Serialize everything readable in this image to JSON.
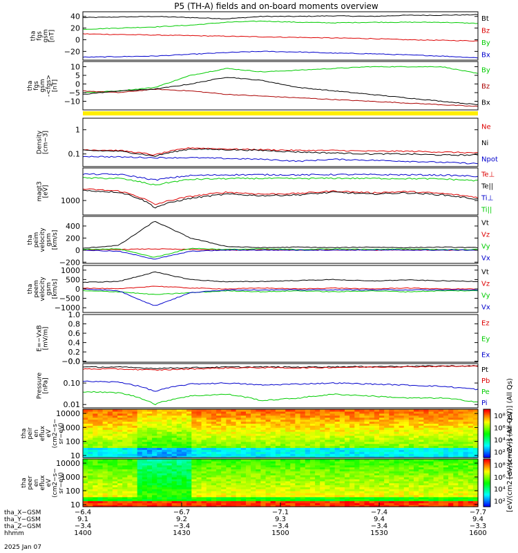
{
  "title": "P5 (TH-A) fields and on-board moments overview",
  "chart_data": [
    {
      "type": "line",
      "panel_label": [
        "tha",
        "fgs",
        "gsm",
        "[nT]"
      ],
      "yticks": [
        "40",
        "20",
        "0",
        "−20"
      ],
      "ylim": [
        -35,
        48
      ],
      "series": [
        {
          "name": "Bt",
          "color": "#000000",
          "values": [
            38,
            39,
            40,
            38,
            36,
            40,
            40,
            41,
            40,
            42,
            42,
            43
          ]
        },
        {
          "name": "Bz",
          "color": "#dd0000",
          "values": [
            10,
            9,
            8,
            7,
            6,
            5,
            4,
            3,
            2,
            0,
            -1,
            -2
          ]
        },
        {
          "name": "By",
          "color": "#00cc00",
          "values": [
            18,
            20,
            22,
            25,
            30,
            32,
            30,
            29,
            30,
            30,
            30,
            28
          ]
        },
        {
          "name": "Bx",
          "color": "#0000cc",
          "values": [
            -30,
            -29,
            -28,
            -25,
            -22,
            -20,
            -21,
            -23,
            -24,
            -26,
            -28,
            -31
          ]
        }
      ]
    },
    {
      "type": "line",
      "panel_label": [
        "tha",
        "fgs",
        "gsm",
        "-<fgs>",
        "[nT]"
      ],
      "yticks": [
        "10",
        "5",
        "0",
        "−5",
        "−10"
      ],
      "ylim": [
        -15,
        13
      ],
      "series": [
        {
          "name": "By",
          "color": "#00cc00",
          "values": [
            -5,
            -4,
            -2,
            5,
            9,
            7,
            8,
            9,
            10,
            10,
            10,
            6
          ]
        },
        {
          "name": "Bz",
          "color": "#aa0000",
          "values": [
            -4,
            -5,
            -3,
            -4,
            -6,
            -7,
            -8,
            -9,
            -10,
            -11,
            -12,
            -13
          ]
        },
        {
          "name": "Bx",
          "color": "#000000",
          "values": [
            -6,
            -4,
            -3,
            0,
            4,
            2,
            -2,
            -4,
            -6,
            -8,
            -10,
            -12
          ]
        }
      ]
    },
    {
      "type": "line",
      "panel_label": [
        "Density",
        "[cm−3]"
      ],
      "yscale": "log",
      "yticks": [
        "1",
        "0.1"
      ],
      "ylim": [
        0.03,
        3
      ],
      "series": [
        {
          "name": "Ne",
          "color": "#dd0000",
          "values": [
            0.15,
            0.14,
            0.09,
            0.18,
            0.16,
            0.15,
            0.14,
            0.14,
            0.13,
            0.13,
            0.12,
            0.11
          ]
        },
        {
          "name": "Ni",
          "color": "#000000",
          "values": [
            0.14,
            0.13,
            0.08,
            0.16,
            0.15,
            0.14,
            0.12,
            0.11,
            0.1,
            0.1,
            0.09,
            0.09
          ]
        },
        {
          "name": "Npot",
          "color": "#0000cc",
          "values": [
            0.08,
            0.075,
            0.07,
            0.07,
            0.065,
            0.06,
            0.05,
            0.06,
            0.055,
            0.05,
            0.045,
            0.04
          ]
        }
      ]
    },
    {
      "type": "line",
      "panel_label": [
        "magt3",
        "[eV]"
      ],
      "yscale": "log",
      "yticks": [
        "1000"
      ],
      "ylim": [
        300,
        15000
      ],
      "series": [
        {
          "name": "Te⊥",
          "color": "#dd0000",
          "values": [
            2600,
            2200,
            700,
            1400,
            2000,
            1700,
            1800,
            2200,
            1900,
            2100,
            1800,
            1300
          ]
        },
        {
          "name": "Te||",
          "color": "#000000",
          "values": [
            2300,
            2000,
            550,
            1200,
            1700,
            1500,
            1600,
            2000,
            1700,
            1900,
            1600,
            1100
          ]
        },
        {
          "name": "Ti⊥",
          "color": "#0000cc",
          "values": [
            9000,
            8800,
            5500,
            8000,
            8500,
            8600,
            8400,
            8700,
            8600,
            8500,
            8300,
            7500
          ]
        },
        {
          "name": "Ti||",
          "color": "#00cc00",
          "values": [
            6500,
            6300,
            3600,
            5800,
            6200,
            6300,
            6200,
            6400,
            6300,
            6200,
            6000,
            5200
          ]
        }
      ]
    },
    {
      "type": "line",
      "panel_label": [
        "tha",
        "peim",
        "velocity",
        "gsm",
        "[km/s]"
      ],
      "yticks": [
        "400",
        "200",
        "0",
        "−200"
      ],
      "ylim": [
        -220,
        560
      ],
      "series": [
        {
          "name": "Vt",
          "color": "#000000",
          "values": [
            30,
            80,
            480,
            200,
            60,
            40,
            50,
            40,
            50,
            40,
            50,
            40
          ]
        },
        {
          "name": "Vz",
          "color": "#dd0000",
          "values": [
            0,
            10,
            20,
            10,
            0,
            5,
            0,
            5,
            0,
            5,
            0,
            0
          ]
        },
        {
          "name": "Vy",
          "color": "#00cc00",
          "values": [
            10,
            20,
            -120,
            30,
            10,
            20,
            10,
            20,
            10,
            20,
            10,
            10
          ]
        },
        {
          "name": "Vx",
          "color": "#0000cc",
          "values": [
            0,
            -20,
            -150,
            -20,
            0,
            0,
            0,
            0,
            0,
            0,
            0,
            0
          ]
        }
      ]
    },
    {
      "type": "line",
      "panel_label": [
        "tha",
        "peem",
        "velocity",
        "gsm",
        "[km/s]"
      ],
      "yticks": [
        "1000",
        "500",
        "0",
        "−500",
        "−1000"
      ],
      "ylim": [
        -1250,
        1250
      ],
      "series": [
        {
          "name": "Vt",
          "color": "#000000",
          "values": [
            350,
            400,
            900,
            500,
            380,
            400,
            450,
            500,
            420,
            480,
            430,
            400
          ]
        },
        {
          "name": "Vz",
          "color": "#dd0000",
          "values": [
            50,
            0,
            150,
            50,
            0,
            50,
            0,
            50,
            0,
            50,
            0,
            0
          ]
        },
        {
          "name": "Vy",
          "color": "#00cc00",
          "values": [
            -100,
            -150,
            -300,
            -200,
            -100,
            -150,
            -100,
            -150,
            -100,
            -150,
            -100,
            -100
          ]
        },
        {
          "name": "Vx",
          "color": "#0000cc",
          "values": [
            0,
            -100,
            -900,
            -200,
            -50,
            -50,
            -50,
            -50,
            -50,
            -50,
            -50,
            -50
          ]
        }
      ]
    },
    {
      "type": "line",
      "panel_label": [
        "E=−VxB",
        "[mV/m]"
      ],
      "yticks": [
        "1.0",
        "0.8",
        "0.6",
        "0.4",
        "0.2",
        "0.0",
        "−0.0"
      ],
      "ylim": [
        -0.02,
        1.0
      ],
      "series": [
        {
          "name": "Ez",
          "color": "#dd0000",
          "values": []
        },
        {
          "name": "Ey",
          "color": "#00cc00",
          "values": []
        },
        {
          "name": "Ex",
          "color": "#0000cc",
          "values": []
        }
      ]
    },
    {
      "type": "line",
      "panel_label": [
        "Pressure",
        "[nPa]"
      ],
      "yscale": "log",
      "yticks": [
        "0.10",
        "0.01"
      ],
      "ylim": [
        0.007,
        0.8
      ],
      "series": [
        {
          "name": "Pt",
          "color": "#000000",
          "values": [
            0.55,
            0.55,
            0.48,
            0.52,
            0.55,
            0.56,
            0.55,
            0.57,
            0.58,
            0.6,
            0.62,
            0.62
          ]
        },
        {
          "name": "Pb",
          "color": "#dd0000",
          "values": [
            0.45,
            0.45,
            0.4,
            0.45,
            0.5,
            0.52,
            0.5,
            0.53,
            0.55,
            0.57,
            0.6,
            0.6
          ]
        },
        {
          "name": "Pe",
          "color": "#00cc00",
          "values": [
            0.04,
            0.035,
            0.01,
            0.025,
            0.03,
            0.015,
            0.02,
            0.03,
            0.025,
            0.02,
            0.02,
            0.013
          ]
        },
        {
          "name": "Pi",
          "color": "#0000cc",
          "values": [
            0.12,
            0.11,
            0.04,
            0.09,
            0.1,
            0.08,
            0.09,
            0.1,
            0.09,
            0.08,
            0.07,
            0.05
          ]
        }
      ]
    },
    {
      "type": "heatmap",
      "panel_label": [
        "tha",
        "peir",
        "en",
        "eflux",
        "eV",
        "(cm2−s−",
        "sr−eV)"
      ],
      "yscale": "log",
      "yticks": [
        "10000",
        "1000",
        "100",
        "10"
      ],
      "ylim": [
        7,
        20000
      ]
    },
    {
      "type": "heatmap",
      "panel_label": [
        "tha",
        "peer",
        "en",
        "eflux",
        "eV",
        "(cm2−s−",
        "sr−eV)"
      ],
      "yscale": "log",
      "yticks": [
        "10000",
        "1000",
        "100",
        "10"
      ],
      "ylim": [
        7,
        20000
      ]
    }
  ],
  "colorbars": [
    {
      "labels": [
        "10⁸",
        "10⁶",
        "10⁴",
        "10²"
      ]
    },
    {
      "labels": [
        "10⁸",
        "10⁶",
        "10⁴",
        "10²"
      ]
    }
  ],
  "colorbar_unit": "[eV/(cm2−s−sr−eV)] (All Qs)",
  "colorbar_unit_overlay": "[eV/(cm2−s−sr−eV)] (All Qs)",
  "x_axis": {
    "rows": [
      {
        "label": "tha_X−GSM",
        "values": [
          "−6.4",
          "−6.7",
          "−7.1",
          "−7.4",
          "−7.7"
        ]
      },
      {
        "label": "tha_Y−GSM",
        "values": [
          "9.1",
          "9.2",
          "9.3",
          "9.4",
          "9.4"
        ]
      },
      {
        "label": "tha_Z−GSM",
        "values": [
          "−3.4",
          "−3.4",
          "−3.4",
          "−3.4",
          "−3.3"
        ]
      },
      {
        "label": "hhmm",
        "values": [
          "1400",
          "1430",
          "1500",
          "1530",
          "1600"
        ]
      }
    ],
    "date": "2025 Jan 07"
  }
}
